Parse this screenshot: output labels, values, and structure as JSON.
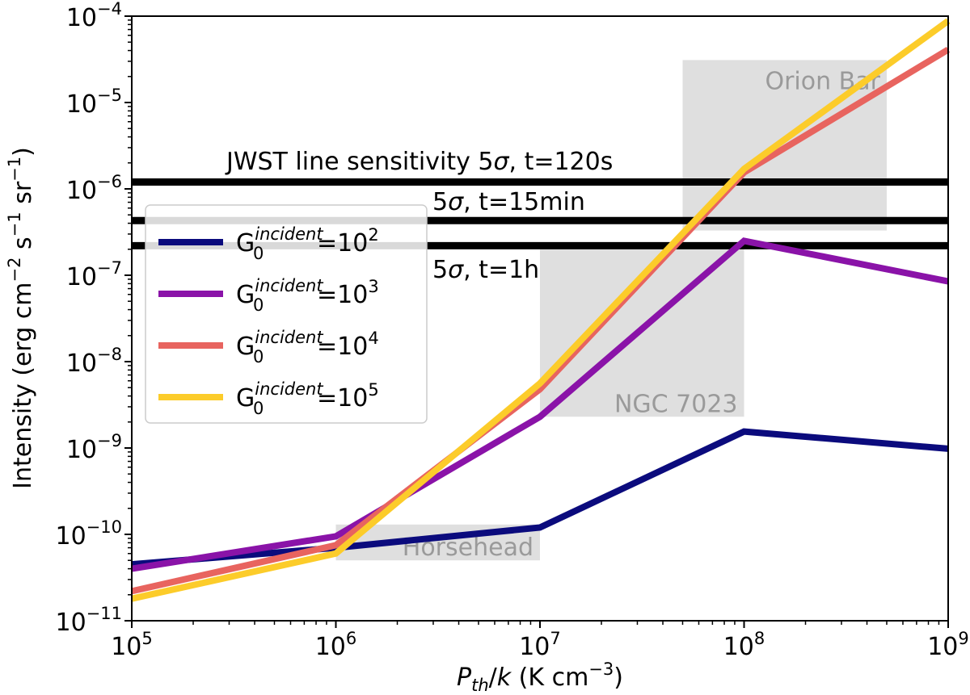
{
  "chart_data": {
    "type": "line",
    "xscale": "log",
    "yscale": "log",
    "xlabel": "P_th/k (K cm^-3)",
    "ylabel": "Intensity (erg cm^-2 s^-1 sr^-1)",
    "xlim": [
      100000,
      1000000000
    ],
    "ylim": [
      1e-11,
      0.0001
    ],
    "x_ticks": [
      {
        "value": 100000,
        "base": "10",
        "exp": "5"
      },
      {
        "value": 1000000,
        "base": "10",
        "exp": "6"
      },
      {
        "value": 10000000,
        "base": "10",
        "exp": "7"
      },
      {
        "value": 100000000,
        "base": "10",
        "exp": "8"
      },
      {
        "value": 1000000000,
        "base": "10",
        "exp": "9"
      }
    ],
    "y_ticks": [
      {
        "value": 1e-11,
        "base": "10",
        "exp": "−11"
      },
      {
        "value": 1e-10,
        "base": "10",
        "exp": "−10"
      },
      {
        "value": 1e-09,
        "base": "10",
        "exp": "−9"
      },
      {
        "value": 1e-08,
        "base": "10",
        "exp": "−8"
      },
      {
        "value": 1e-07,
        "base": "10",
        "exp": "−7"
      },
      {
        "value": 1e-06,
        "base": "10",
        "exp": "−6"
      },
      {
        "value": 1e-05,
        "base": "10",
        "exp": "−5"
      },
      {
        "value": 0.0001,
        "base": "10",
        "exp": "−4"
      }
    ],
    "x": [
      100000,
      1000000,
      10000000,
      100000000,
      1000000000
    ],
    "series": [
      {
        "name": "G0 incident = 10^2",
        "exp": "2",
        "color": "#0b0b7d",
        "values": [
          4.5e-11,
          7e-11,
          1.2e-10,
          1.55e-09,
          9.8e-10
        ]
      },
      {
        "name": "G0 incident = 10^3",
        "exp": "3",
        "color": "#8a13a8",
        "values": [
          4e-11,
          9.5e-11,
          2.3e-09,
          2.5e-07,
          8.5e-08
        ]
      },
      {
        "name": "G0 incident = 10^4",
        "exp": "4",
        "color": "#e8645f",
        "values": [
          2.2e-11,
          7.5e-11,
          4.8e-09,
          1.55e-06,
          4.1e-05
        ]
      },
      {
        "name": "G0 incident = 10^5",
        "exp": "5",
        "color": "#fccc2a",
        "values": [
          1.8e-11,
          6e-11,
          5.6e-09,
          1.7e-06,
          8.8e-05
        ]
      }
    ],
    "regions": [
      {
        "label": "Orion Bar",
        "x": [
          50000000,
          500000000
        ],
        "y": [
          3.3e-07,
          3.1e-05
        ]
      },
      {
        "label": "NGC 7023",
        "x": [
          10000000,
          100000000
        ],
        "y": [
          2.3e-09,
          2.3e-07
        ]
      },
      {
        "label": "Horsehead",
        "x": [
          1000000,
          10000000
        ],
        "y": [
          5e-11,
          1.3e-10
        ]
      }
    ],
    "sensitivity_lines": [
      {
        "value": 1.2e-06,
        "label_prefix": "JWST line sensitivity 5",
        "label_suffix": ", t=120s"
      },
      {
        "value": 4.3e-07,
        "label_prefix": "5",
        "label_suffix": ", t=15min"
      },
      {
        "value": 2.2e-07,
        "label_prefix": "5",
        "label_suffix": ", t=1h"
      }
    ],
    "legend": {
      "placement": "center-left",
      "symbol": "G",
      "sub": "0",
      "sup": "incident",
      "eq": "=10"
    },
    "labels": {
      "x_italic": "P",
      "x_sub": "th",
      "x_mid": "/",
      "x_italic2": "k",
      "x_rest": " (K cm",
      "x_exp": "−3",
      "x_close": ")",
      "y_start": "Intensity (erg cm",
      "y_exp1": "−2",
      "y_mid1": " s",
      "y_exp2": "−1",
      "y_mid2": " sr",
      "y_exp3": "−1",
      "y_close": ")",
      "sigma": "σ"
    }
  }
}
